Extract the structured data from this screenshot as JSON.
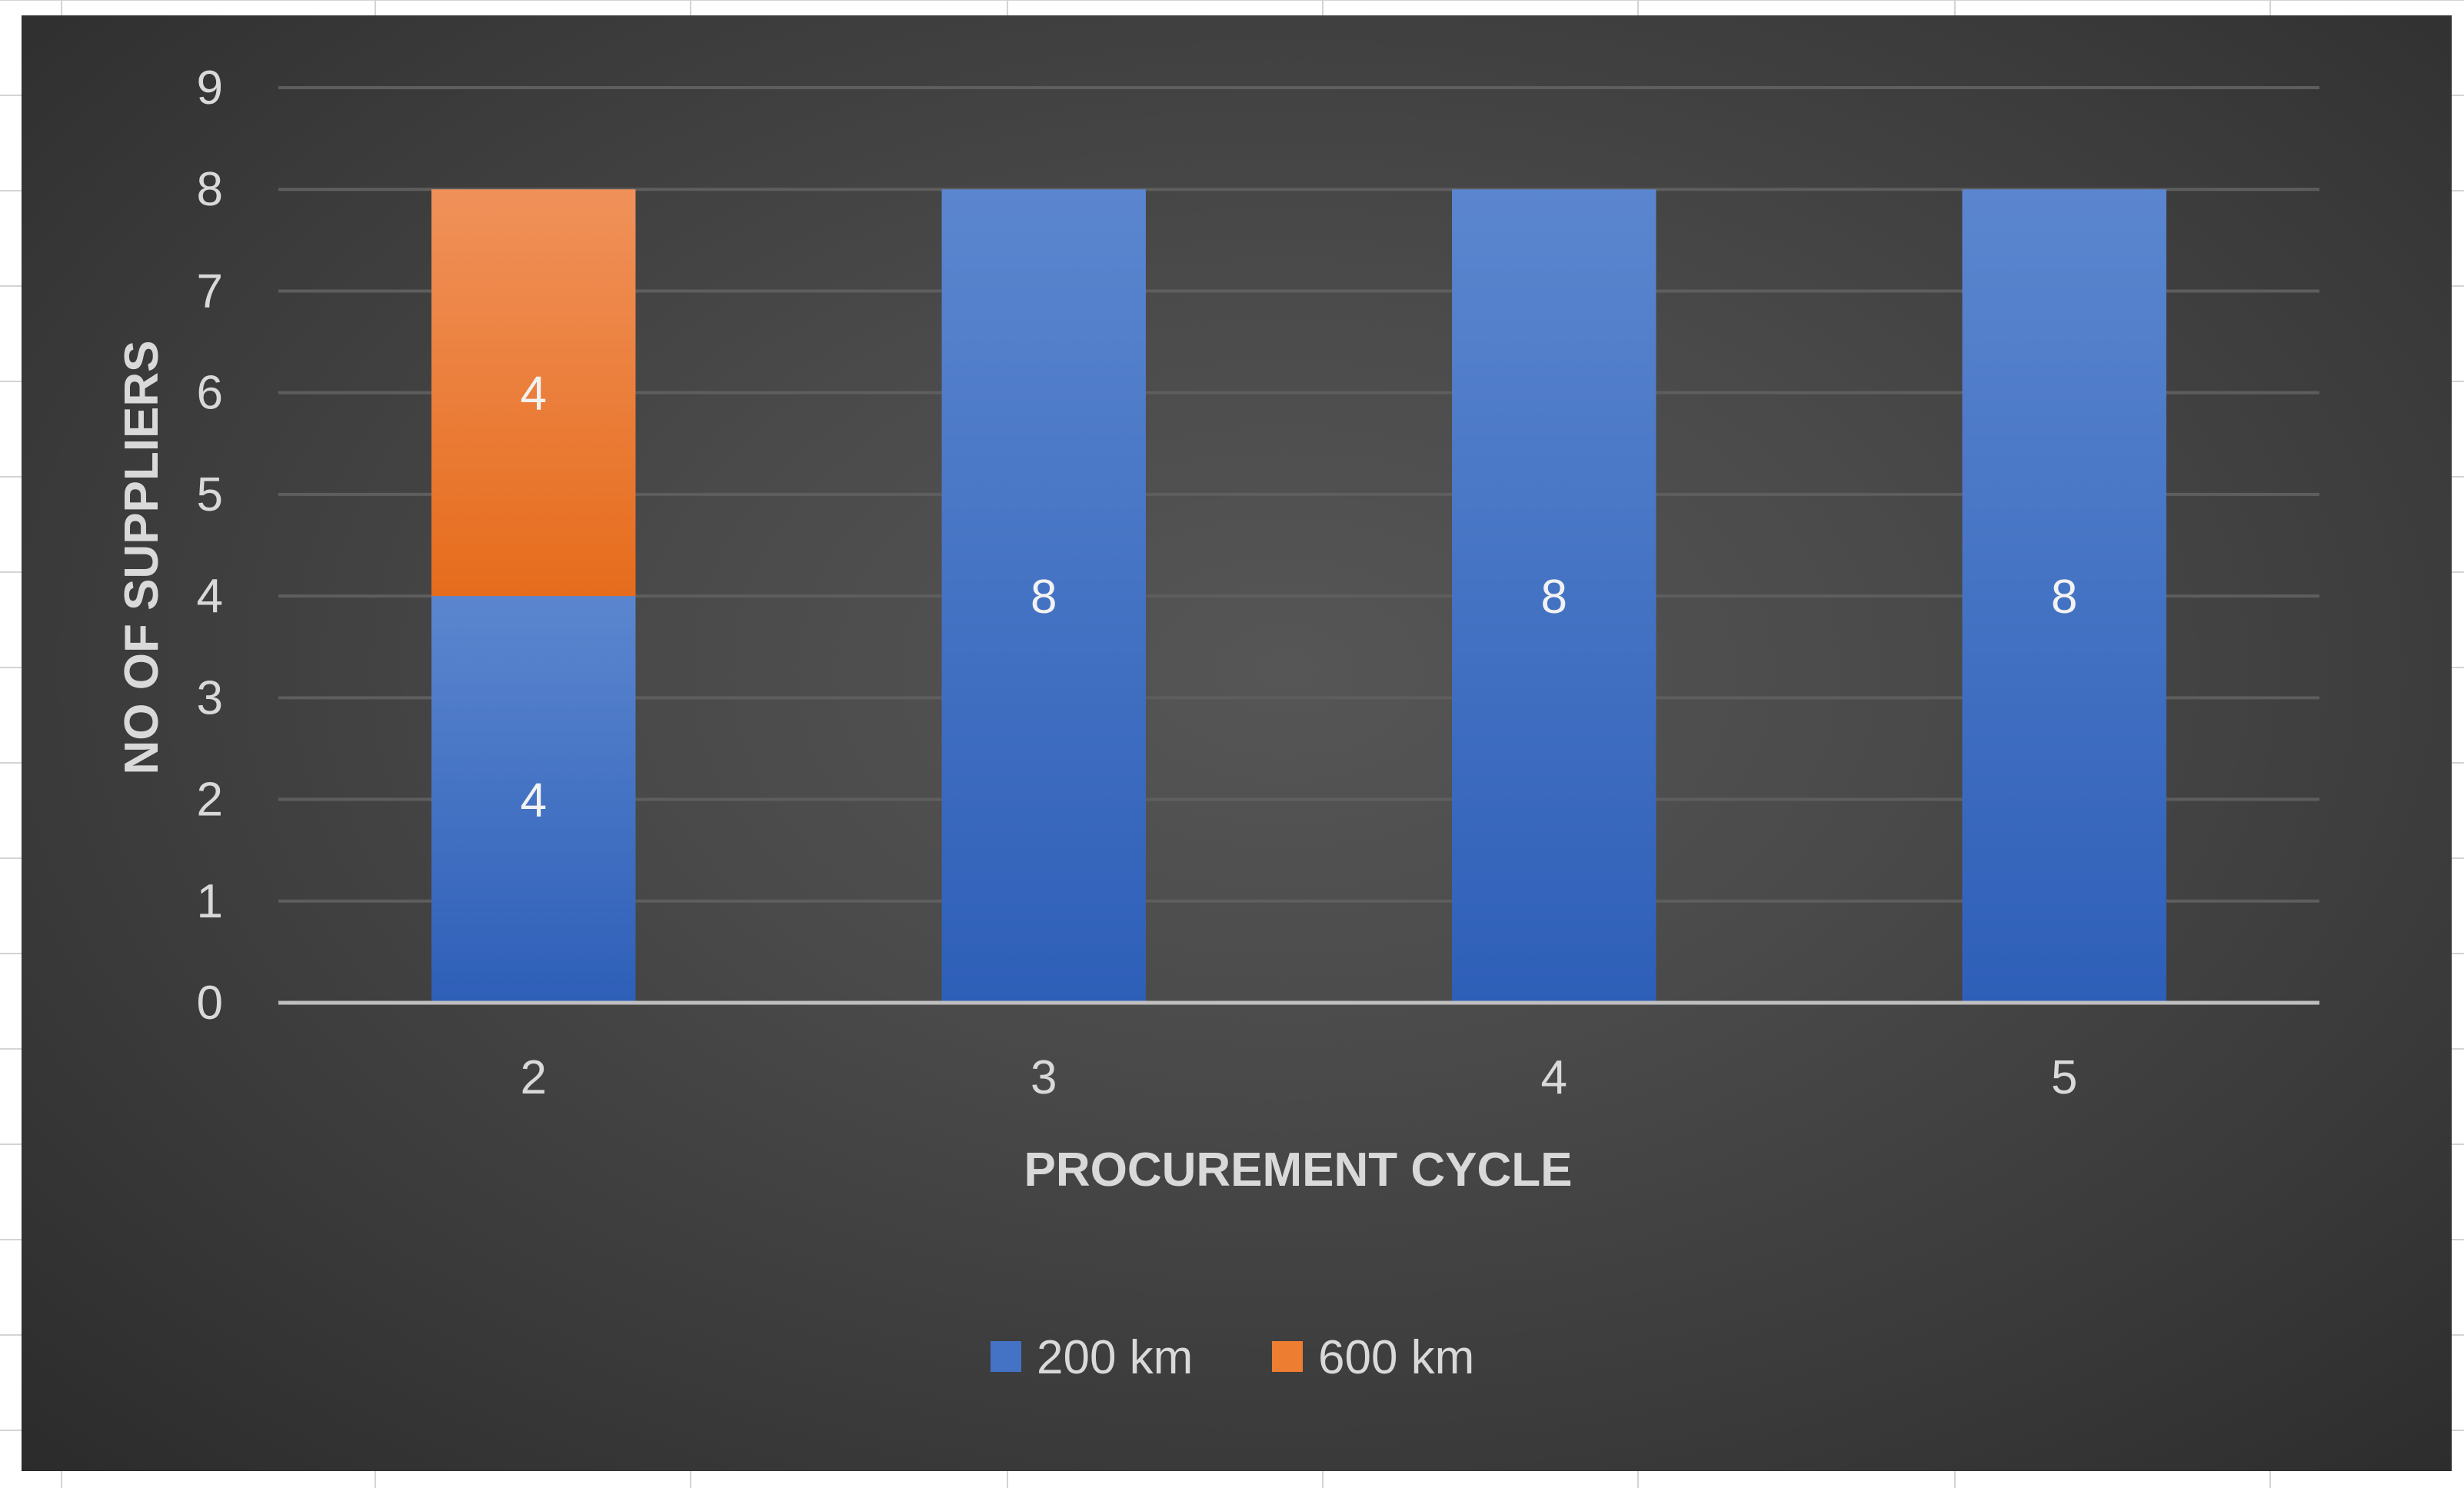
{
  "chart_data": {
    "type": "bar",
    "stacked": true,
    "categories": [
      "2",
      "3",
      "4",
      "5"
    ],
    "series": [
      {
        "name": "200 km",
        "values": [
          4,
          8,
          8,
          8
        ],
        "color": "#4472c4"
      },
      {
        "name": "600 km",
        "values": [
          4,
          0,
          0,
          0
        ],
        "color": "#ed7d31"
      }
    ],
    "xlabel": "PROCUREMENT CYCLE",
    "ylabel": "NO OF SUPPLIERS",
    "ylim": [
      0,
      9
    ],
    "yticks": [
      "0",
      "1",
      "2",
      "3",
      "4",
      "5",
      "6",
      "7",
      "8",
      "9"
    ],
    "grid": true,
    "legend": "bottom",
    "data_labels": true,
    "background": "#404040"
  }
}
